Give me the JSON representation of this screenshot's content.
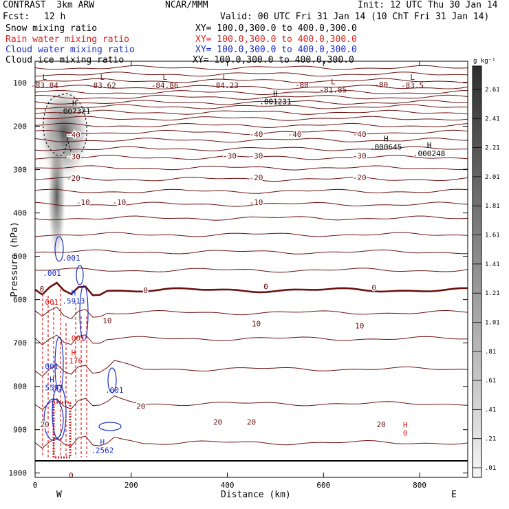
{
  "header": {
    "title": "CONTRAST  3km ARW",
    "center": "NCAR/MMM",
    "init": "Init: 12 UTC Thu 30 Jan 14",
    "fcst_label": "Fcst:",
    "fcst_value": "12 h",
    "valid": "Valid: 00 UTC Fri 31 Jan 14 (10 ChT Fri 31 Jan 14)"
  },
  "legend": [
    {
      "name": "Snow mixing ratio",
      "xy": "XY= 100.0,300.0 to 400.0,300.0",
      "color": "#000000"
    },
    {
      "name": "Rain water mixing ratio",
      "xy": "XY= 100.0,300.0 to 400.0,300.0",
      "color": "#e02020"
    },
    {
      "name": "Cloud water mixing ratio",
      "xy": "XY= 100.0,300.0 to 400.0,300.0",
      "color": "#1a2cc8"
    },
    {
      "name": "Cloud ice mixing ratio",
      "xy": "XY= 100.0,300.0 to 400.0,300.0",
      "color": "#000000"
    }
  ],
  "chart_data": {
    "type": "contour",
    "xlabel": "Distance (km)",
    "ylabel": "Pressure (hPa)",
    "xlim": [
      0,
      900
    ],
    "ylim": [
      1010,
      50
    ],
    "x_ticks": [
      0,
      200,
      400,
      600,
      800
    ],
    "y_ticks": [
      100,
      200,
      300,
      400,
      500,
      600,
      700,
      800,
      900,
      1000
    ],
    "x_end_labels": {
      "left": "W",
      "right": "E"
    },
    "colorbar": {
      "unit": "g kg⁻¹",
      "levels": [
        "2.61",
        "2.41",
        "2.21",
        "2.01",
        "1.81",
        "1.61",
        "1.41",
        "1.21",
        "1.01",
        ".81",
        ".61",
        ".41",
        ".21",
        ".01"
      ]
    },
    "temperature_labels": [
      {
        "x": 80,
        "p": 220,
        "text": "-40"
      },
      {
        "x": 460,
        "p": 218,
        "text": "-40"
      },
      {
        "x": 540,
        "p": 218,
        "text": "-40"
      },
      {
        "x": 675,
        "p": 218,
        "text": "-40"
      },
      {
        "x": 80,
        "p": 270,
        "text": "-30"
      },
      {
        "x": 405,
        "p": 268,
        "text": "-30"
      },
      {
        "x": 460,
        "p": 268,
        "text": "-30"
      },
      {
        "x": 675,
        "p": 268,
        "text": "-30"
      },
      {
        "x": 80,
        "p": 320,
        "text": "-20"
      },
      {
        "x": 460,
        "p": 318,
        "text": "-20"
      },
      {
        "x": 675,
        "p": 318,
        "text": "-20"
      },
      {
        "x": 100,
        "p": 375,
        "text": "-10"
      },
      {
        "x": 460,
        "p": 375,
        "text": "-10"
      },
      {
        "x": 175,
        "p": 375,
        "text": "-10"
      },
      {
        "x": 14,
        "p": 575,
        "text": "0"
      },
      {
        "x": 230,
        "p": 578,
        "text": "0"
      },
      {
        "x": 480,
        "p": 570,
        "text": "0"
      },
      {
        "x": 705,
        "p": 572,
        "text": "0"
      },
      {
        "x": 150,
        "p": 648,
        "text": "10"
      },
      {
        "x": 460,
        "p": 655,
        "text": "10"
      },
      {
        "x": 675,
        "p": 660,
        "text": "10"
      },
      {
        "x": 220,
        "p": 846,
        "text": "20"
      },
      {
        "x": 380,
        "p": 882,
        "text": "20"
      },
      {
        "x": 450,
        "p": 882,
        "text": "20"
      },
      {
        "x": 720,
        "p": 888,
        "text": "20"
      },
      {
        "x": 20,
        "p": 888,
        "text": "20"
      },
      {
        "x": 75,
        "p": 1005,
        "text": "0"
      }
    ],
    "extrema_labels": [
      {
        "x": 20,
        "p": 93,
        "mark": "L",
        "value": "-83.84"
      },
      {
        "x": 140,
        "p": 93,
        "mark": "L",
        "value": "-83.62"
      },
      {
        "x": 270,
        "p": 93,
        "mark": "L",
        "value": "-84.86"
      },
      {
        "x": 395,
        "p": 93,
        "mark": "L",
        "value": "-84.23"
      },
      {
        "x": 620,
        "p": 103,
        "mark": "L",
        "value": "-81.85"
      },
      {
        "x": 785,
        "p": 93,
        "mark": "L",
        "value": "-83.5"
      },
      {
        "x": 82,
        "p": 152,
        "mark": "H",
        "value": ".007321"
      },
      {
        "x": 500,
        "p": 130,
        "mark": "H",
        "value": ".001231"
      },
      {
        "x": 730,
        "p": 235,
        "mark": "H",
        "value": ".000645"
      },
      {
        "x": 820,
        "p": 250,
        "mark": "H",
        "value": ".000248"
      },
      {
        "x": 80,
        "p": 590,
        "mark": "H",
        "value": ".5913",
        "color": "blue"
      },
      {
        "x": 35,
        "p": 790,
        "mark": "H",
        "value": ".5592",
        "color": "blue"
      },
      {
        "x": 140,
        "p": 935,
        "mark": "H",
        "value": ".2562",
        "color": "blue"
      },
      {
        "x": 80,
        "p": 728,
        "mark": "H",
        "value": ".176",
        "color": "red"
      },
      {
        "x": 770,
        "p": 895,
        "mark": "H",
        "value": "0",
        "color": "red"
      }
    ],
    "misc_labels": [
      {
        "x": 555,
        "p": 110,
        "text": "-80"
      },
      {
        "x": 720,
        "p": 110,
        "text": "-80"
      },
      {
        "x": 75,
        "p": 510,
        "text": ".001",
        "color": "blue"
      },
      {
        "x": 35,
        "p": 545,
        "text": ".001",
        "color": "blue"
      },
      {
        "x": 30,
        "p": 612,
        "text": ".001",
        "color": "red"
      },
      {
        "x": 85,
        "p": 695,
        "text": ".001",
        "color": "red"
      },
      {
        "x": 30,
        "p": 760,
        "text": ".001",
        "color": "blue"
      },
      {
        "x": 165,
        "p": 815,
        "text": ".001",
        "color": "blue"
      }
    ]
  }
}
